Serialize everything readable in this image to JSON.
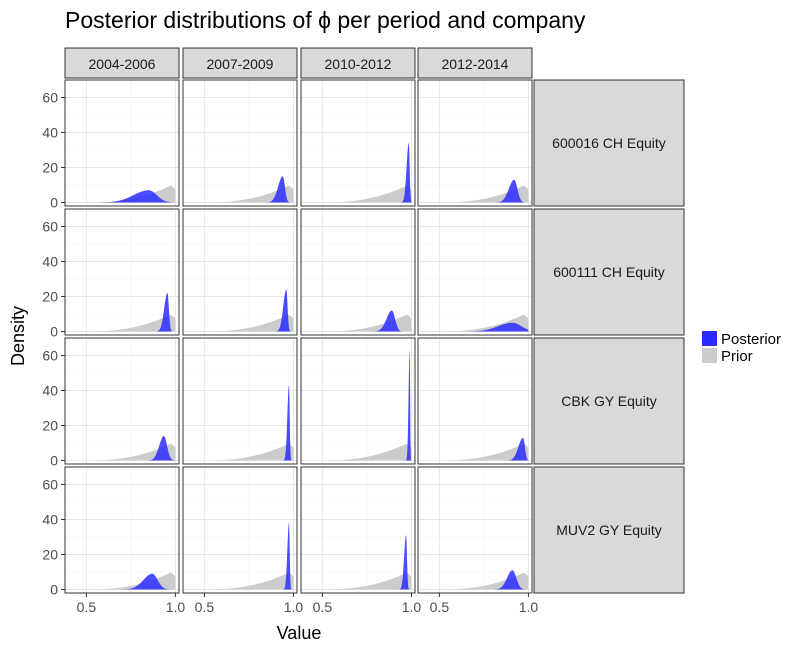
{
  "chart_data": {
    "type": "area",
    "title": "Posterior distributions of ϕ per period and company",
    "xlabel": "Value",
    "ylabel": "Density",
    "xlim": [
      0.38,
      1.02
    ],
    "ylim": [
      -2,
      70
    ],
    "x_ticks": [
      0.5,
      1.0
    ],
    "x_tick_labels": [
      "0.5",
      "1.0"
    ],
    "y_ticks": [
      0,
      20,
      40,
      60
    ],
    "y_tick_labels": [
      "0",
      "20",
      "40",
      "60"
    ],
    "grid": true,
    "legend_position": "right",
    "legend": [
      {
        "name": "Posterior",
        "color": "#2b2bff"
      },
      {
        "name": "Prior",
        "color": "#cccccc"
      }
    ],
    "columns": [
      "2004-2006",
      "2007-2009",
      "2010-2012",
      "2012-2014"
    ],
    "rows": [
      "600016 CH Equity",
      "600111 CH Equity",
      "CBK GY Equity",
      "MUV2 GY Equity"
    ],
    "prior": {
      "x_start": 0.5,
      "mode": 0.97,
      "peak": 9.5,
      "x_end": 1.0
    },
    "posteriors": [
      [
        {
          "mode": 0.85,
          "peak": 7,
          "left_sd": 0.085,
          "right_sd": 0.045,
          "x_start": 0.5
        },
        {
          "mode": 0.94,
          "peak": 15,
          "left_sd": 0.026,
          "right_sd": 0.012
        },
        {
          "mode": 0.985,
          "peak": 34,
          "left_sd": 0.012,
          "right_sd": 0.005
        },
        {
          "mode": 0.92,
          "peak": 13,
          "left_sd": 0.03,
          "right_sd": 0.018
        }
      ],
      [
        {
          "mode": 0.955,
          "peak": 22,
          "left_sd": 0.018,
          "right_sd": 0.008
        },
        {
          "mode": 0.96,
          "peak": 24,
          "left_sd": 0.017,
          "right_sd": 0.007
        },
        {
          "mode": 0.89,
          "peak": 12,
          "left_sd": 0.03,
          "right_sd": 0.018
        },
        {
          "mode": 0.91,
          "peak": 5,
          "left_sd": 0.08,
          "right_sd": 0.05
        }
      ],
      [
        {
          "mode": 0.935,
          "peak": 14,
          "left_sd": 0.026,
          "right_sd": 0.018
        },
        {
          "mode": 0.975,
          "peak": 43,
          "left_sd": 0.009,
          "right_sd": 0.004
        },
        {
          "mode": 0.99,
          "peak": 63,
          "left_sd": 0.006,
          "right_sd": 0.0025
        },
        {
          "mode": 0.97,
          "peak": 13,
          "left_sd": 0.026,
          "right_sd": 0.01
        }
      ],
      [
        {
          "mode": 0.87,
          "peak": 9,
          "left_sd": 0.05,
          "right_sd": 0.03
        },
        {
          "mode": 0.975,
          "peak": 38,
          "left_sd": 0.009,
          "right_sd": 0.004
        },
        {
          "mode": 0.97,
          "peak": 31,
          "left_sd": 0.011,
          "right_sd": 0.005
        },
        {
          "mode": 0.91,
          "peak": 11,
          "left_sd": 0.03,
          "right_sd": 0.022
        }
      ]
    ]
  }
}
